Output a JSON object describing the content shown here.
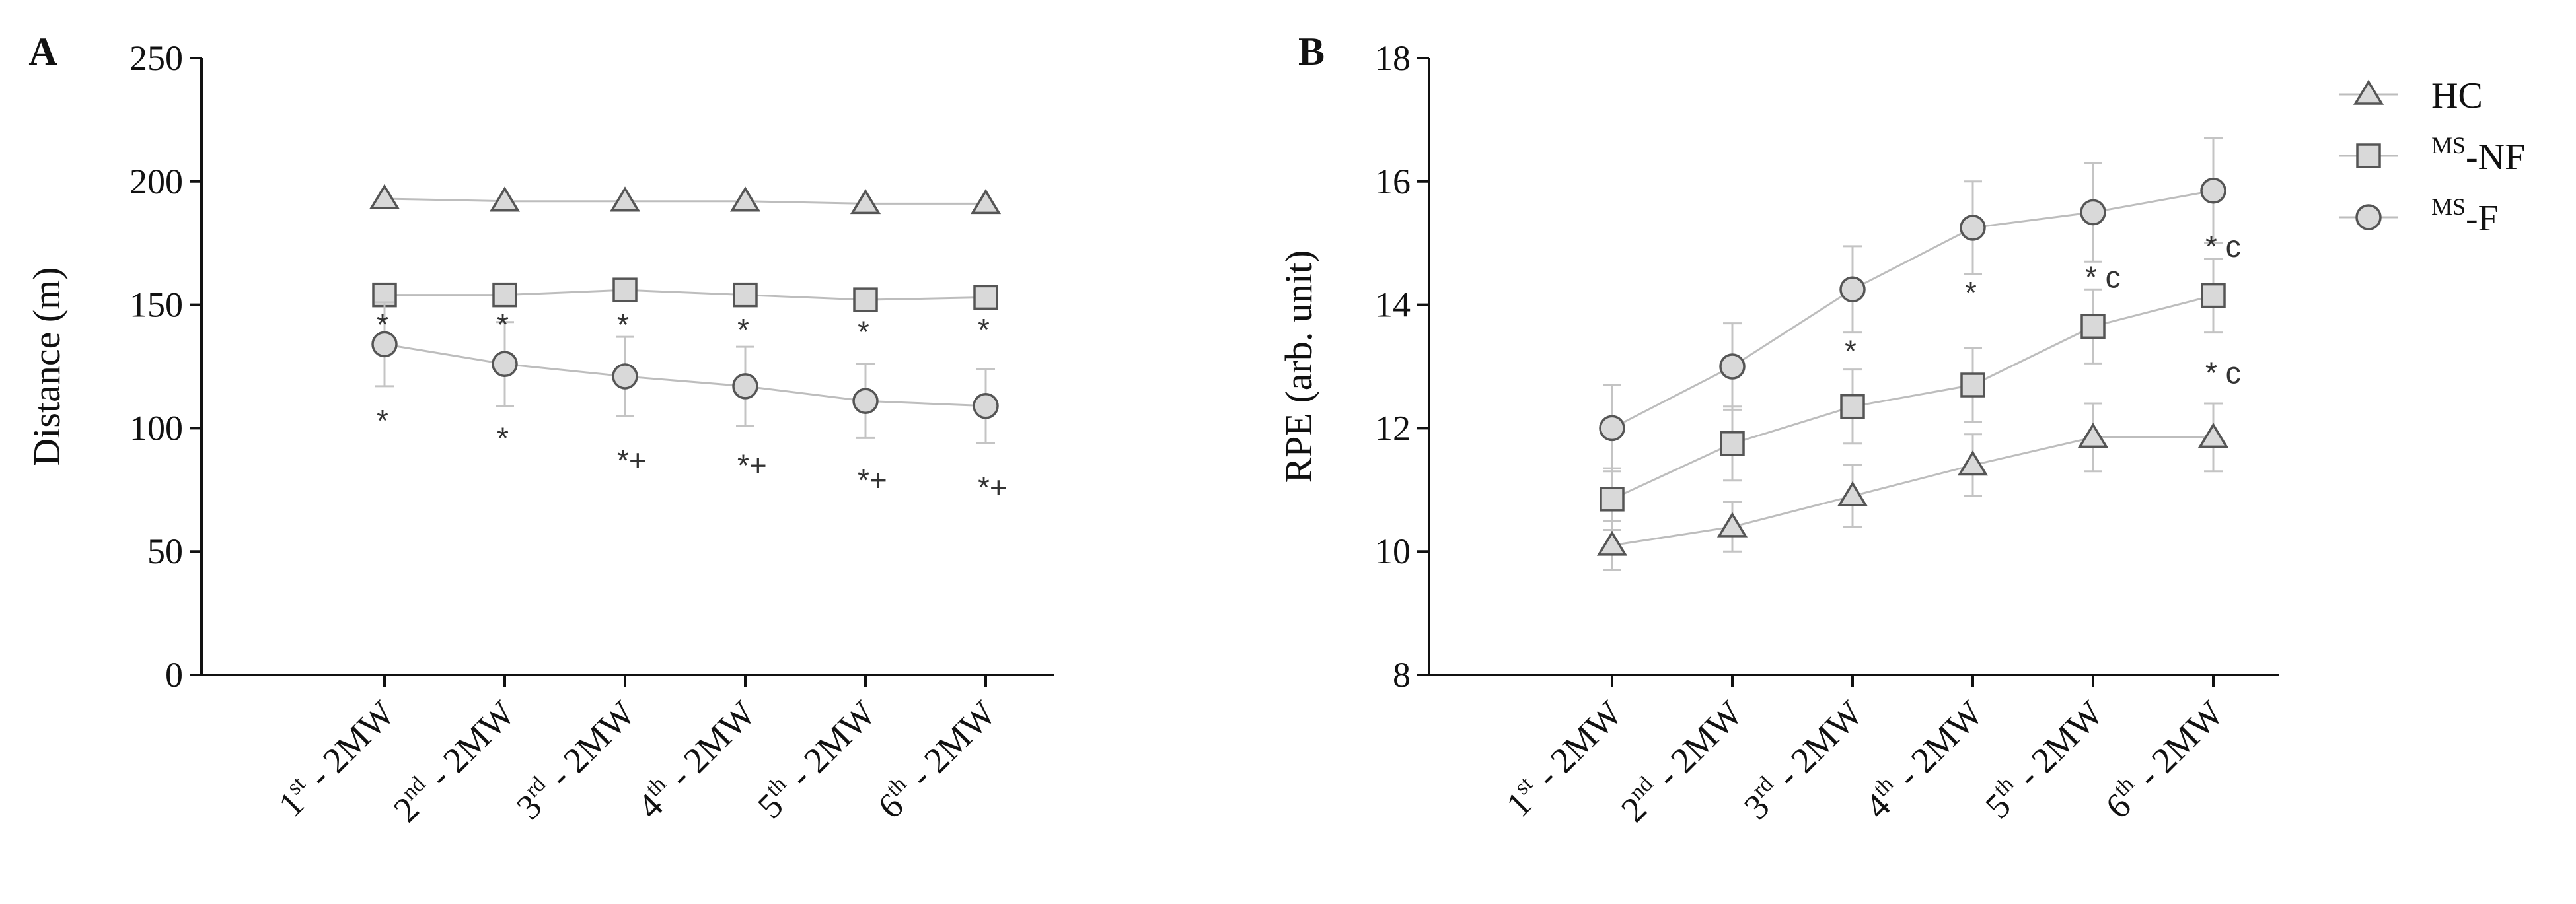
{
  "chart_data": [
    {
      "panel_label": "A",
      "type": "line",
      "ylabel": "Distance (m)",
      "ylim": [
        0,
        250
      ],
      "yticks": [
        "0",
        "50",
        "100",
        "150",
        "200",
        "250"
      ],
      "categories": [
        {
          "ord": "1",
          "sup": "st",
          "suffix": " - 2MW"
        },
        {
          "ord": "2",
          "sup": "nd",
          "suffix": " - 2MW"
        },
        {
          "ord": "3",
          "sup": "rd",
          "suffix": " - 2MW"
        },
        {
          "ord": "4",
          "sup": "th",
          "suffix": " - 2MW"
        },
        {
          "ord": "5",
          "sup": "th",
          "suffix": " - 2MW"
        },
        {
          "ord": "6",
          "sup": "th",
          "suffix": " - 2MW"
        }
      ],
      "series": [
        {
          "key": "HC",
          "marker": "triangle",
          "values": [
            193,
            192,
            192,
            192,
            191,
            191
          ],
          "errors": [
            0,
            0,
            0,
            0,
            0,
            0
          ]
        },
        {
          "key": "MS-NF",
          "marker": "square",
          "values": [
            154,
            154,
            156,
            154,
            152,
            153
          ],
          "errors": [
            0,
            0,
            0,
            0,
            0,
            0
          ]
        },
        {
          "key": "MS-F",
          "marker": "circle",
          "values": [
            134,
            126,
            121,
            117,
            111,
            109
          ],
          "errors": [
            17,
            17,
            16,
            16,
            15,
            15
          ]
        }
      ],
      "annotations": [
        {
          "cat": 0,
          "y": 142,
          "text": "*"
        },
        {
          "cat": 1,
          "y": 142,
          "text": "*"
        },
        {
          "cat": 2,
          "y": 142,
          "text": "*"
        },
        {
          "cat": 3,
          "y": 140,
          "text": "*"
        },
        {
          "cat": 4,
          "y": 139,
          "text": "*"
        },
        {
          "cat": 5,
          "y": 140,
          "text": "*"
        },
        {
          "cat": 0,
          "y": 103,
          "text": "*"
        },
        {
          "cat": 1,
          "y": 96,
          "text": "*"
        },
        {
          "cat": 2,
          "y": 87,
          "text": "*+"
        },
        {
          "cat": 3,
          "y": 85,
          "text": "*+"
        },
        {
          "cat": 4,
          "y": 79,
          "text": "*+"
        },
        {
          "cat": 5,
          "y": 76,
          "text": "*+"
        }
      ]
    },
    {
      "panel_label": "B",
      "type": "line",
      "ylabel": "RPE (arb. unit)",
      "ylim": [
        8,
        18
      ],
      "yticks": [
        "8",
        "10",
        "12",
        "14",
        "16",
        "18"
      ],
      "categories": [
        {
          "ord": "1",
          "sup": "st",
          "suffix": " - 2MW"
        },
        {
          "ord": "2",
          "sup": "nd",
          "suffix": " - 2MW"
        },
        {
          "ord": "3",
          "sup": "rd",
          "suffix": " - 2MW"
        },
        {
          "ord": "4",
          "sup": "th",
          "suffix": " - 2MW"
        },
        {
          "ord": "5",
          "sup": "th",
          "suffix": " - 2MW"
        },
        {
          "ord": "6",
          "sup": "th",
          "suffix": " - 2MW"
        }
      ],
      "series": [
        {
          "key": "HC",
          "marker": "triangle",
          "values": [
            10.1,
            10.4,
            10.9,
            11.4,
            11.85,
            11.85
          ],
          "errors": [
            0.4,
            0.4,
            0.5,
            0.5,
            0.55,
            0.55
          ]
        },
        {
          "key": "MS-NF",
          "marker": "square",
          "values": [
            10.85,
            11.75,
            12.35,
            12.7,
            13.65,
            14.15
          ],
          "errors": [
            0.5,
            0.6,
            0.6,
            0.6,
            0.6,
            0.6
          ]
        },
        {
          "key": "MS-F",
          "marker": "circle",
          "values": [
            12.0,
            13.0,
            14.25,
            15.25,
            15.5,
            15.85
          ],
          "errors": [
            0.7,
            0.7,
            0.7,
            0.75,
            0.8,
            0.85
          ]
        }
      ],
      "annotations": [
        {
          "cat": 2,
          "y": 13.25,
          "text": "*"
        },
        {
          "cat": 3,
          "y": 14.2,
          "text": "*"
        },
        {
          "cat": 4,
          "y": 14.45,
          "text": "* c"
        },
        {
          "cat": 5,
          "y": 14.95,
          "text": "* c"
        },
        {
          "cat": 5,
          "y": 12.9,
          "text": "* c"
        }
      ]
    }
  ],
  "legend": {
    "placement": "top-right",
    "items": [
      {
        "key": "HC",
        "marker": "triangle",
        "sup": "",
        "label": "HC"
      },
      {
        "key": "MS-NF",
        "marker": "square",
        "sup": "MS",
        "label": "-NF"
      },
      {
        "key": "MS-F",
        "marker": "circle",
        "sup": "MS",
        "label": "-F"
      }
    ]
  },
  "colors": {
    "axis": "#111111",
    "line": "#bdbdbd",
    "marker_fill": "#d9d9d9",
    "marker_stroke": "#555555",
    "error_bar": "#c4c4c4"
  }
}
